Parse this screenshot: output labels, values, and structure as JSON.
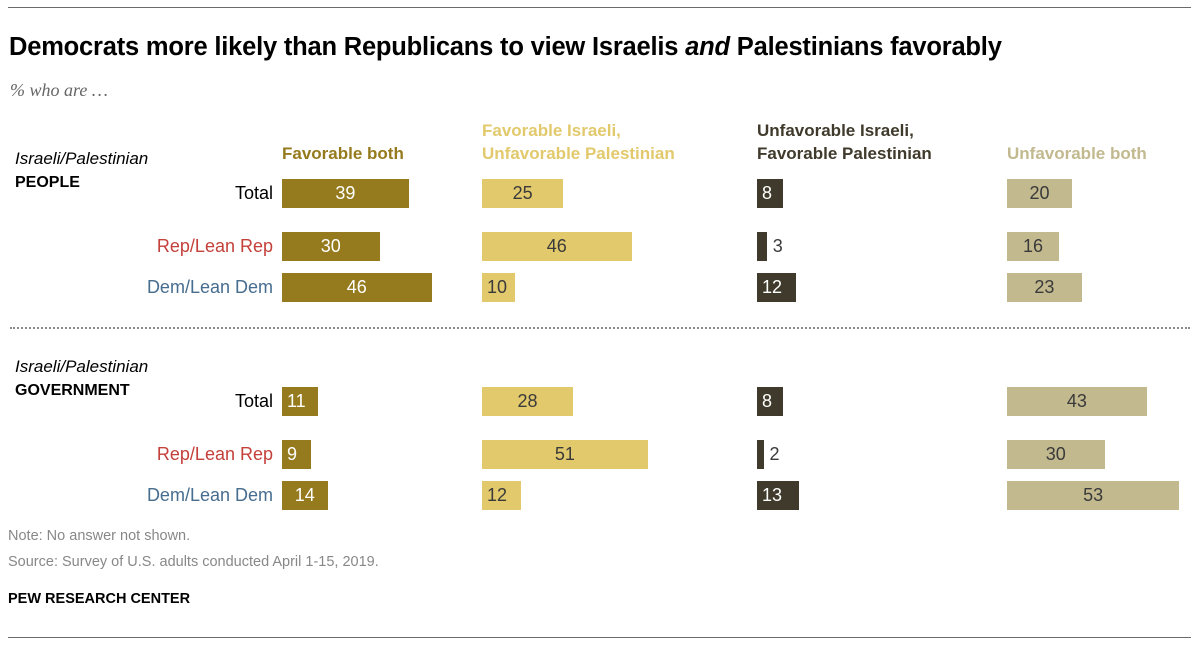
{
  "title_pre": "Democrats more likely than Republicans to view Israelis ",
  "title_em": "and",
  "title_post": " Palestinians favorably",
  "subtitle": "% who are …",
  "colors": {
    "favorable_both": "#957a1e",
    "fav_israeli_unfav_pal": "#e2c96c",
    "unfav_israeli_fav_pal": "#3f3a2b",
    "unfavorable_both": "#c2b98f",
    "rep": "#c4403a",
    "dem": "#466d8e"
  },
  "column_headers": [
    {
      "lines": [
        "Favorable both"
      ]
    },
    {
      "lines": [
        "Favorable Israeli,",
        "Unfavorable Palestinian"
      ]
    },
    {
      "lines": [
        "Unfavorable Israeli,",
        "Favorable Palestinian"
      ]
    },
    {
      "lines": [
        "Unfavorable both"
      ]
    }
  ],
  "sections": [
    {
      "line1": "Israeli/Palestinian",
      "line2": "PEOPLE"
    },
    {
      "line1": "Israeli/Palestinian",
      "line2": "GOVERNMENT"
    }
  ],
  "chart_data": {
    "type": "bar",
    "title": "Democrats more likely than Republicans to view Israelis and Palestinians favorably",
    "subtitle": "% who are …",
    "series": [
      {
        "name": "Favorable both"
      },
      {
        "name": "Favorable Israeli, Unfavorable Palestinian"
      },
      {
        "name": "Unfavorable Israeli, Favorable Palestinian"
      },
      {
        "name": "Unfavorable both"
      }
    ],
    "groups": [
      {
        "name": "Israeli/Palestinian PEOPLE",
        "rows": [
          {
            "label": "Total",
            "values": [
              39,
              25,
              8,
              20
            ]
          },
          {
            "label": "Rep/Lean Rep",
            "values": [
              30,
              46,
              3,
              16
            ]
          },
          {
            "label": "Dem/Lean Dem",
            "values": [
              46,
              10,
              12,
              23
            ]
          }
        ]
      },
      {
        "name": "Israeli/Palestinian GOVERNMENT",
        "rows": [
          {
            "label": "Total",
            "values": [
              11,
              28,
              8,
              43
            ]
          },
          {
            "label": "Rep/Lean Rep",
            "values": [
              9,
              51,
              2,
              30
            ]
          },
          {
            "label": "Dem/Lean Dem",
            "values": [
              14,
              12,
              13,
              53
            ]
          }
        ]
      }
    ]
  },
  "footer": {
    "note": "Note: No answer not shown.",
    "source": "Source: Survey of U.S. adults conducted April 1-15, 2019.",
    "brand": "PEW RESEARCH CENTER"
  }
}
